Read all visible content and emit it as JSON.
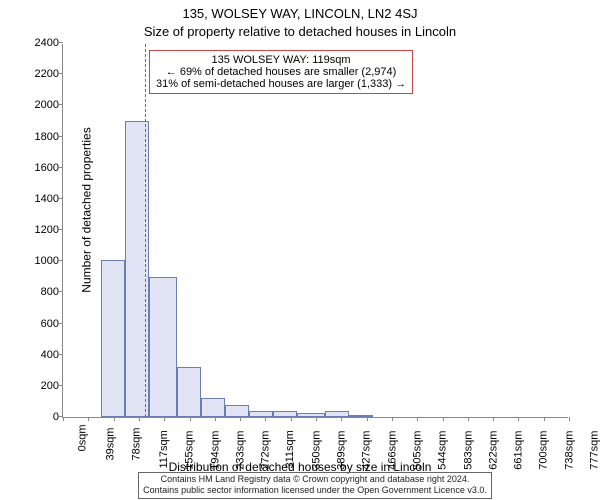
{
  "title_line1": "135, WOLSEY WAY, LINCOLN, LN2 4SJ",
  "title_line2": "Size of property relative to detached houses in Lincoln",
  "ylabel": "Number of detached properties",
  "xlabel": "Distribution of detached houses by size in Lincoln",
  "chart": {
    "type": "bar",
    "ylim": [
      0,
      2400
    ],
    "ytick_step": 200,
    "bar_fill": "#e0e4f4",
    "bar_stroke": "#6a7fb0",
    "marker_color": "#cc4444",
    "background_color": "#ffffff",
    "axis_color": "#888888",
    "xticks": [
      "0sqm",
      "39sqm",
      "78sqm",
      "117sqm",
      "155sqm",
      "194sqm",
      "233sqm",
      "272sqm",
      "311sqm",
      "350sqm",
      "389sqm",
      "427sqm",
      "466sqm",
      "505sqm",
      "544sqm",
      "583sqm",
      "622sqm",
      "661sqm",
      "700sqm",
      "738sqm",
      "777sqm"
    ],
    "bars": [
      {
        "x": 38,
        "w": 24,
        "v": 1010
      },
      {
        "x": 62,
        "w": 24,
        "v": 1900
      },
      {
        "x": 86,
        "w": 28,
        "v": 900
      },
      {
        "x": 114,
        "w": 24,
        "v": 320
      },
      {
        "x": 138,
        "w": 24,
        "v": 120
      },
      {
        "x": 162,
        "w": 24,
        "v": 80
      },
      {
        "x": 186,
        "w": 24,
        "v": 40
      },
      {
        "x": 210,
        "w": 24,
        "v": 40
      },
      {
        "x": 234,
        "w": 28,
        "v": 25
      },
      {
        "x": 262,
        "w": 24,
        "v": 40
      },
      {
        "x": 286,
        "w": 24,
        "v": 15
      }
    ],
    "marker_x": 82
  },
  "callout": {
    "line1": "135 WOLSEY WAY: 119sqm",
    "line2": "← 69% of detached houses are smaller (2,974)",
    "line3": "31% of semi-detached houses are larger (1,333) →"
  },
  "footer": {
    "line1": "Contains HM Land Registry data © Crown copyright and database right 2024.",
    "line2": "Contains public sector information licensed under the Open Government Licence v3.0."
  }
}
